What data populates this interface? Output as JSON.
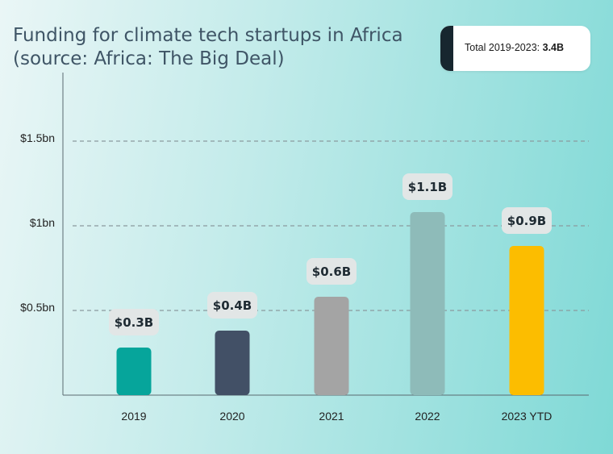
{
  "title_line1": "Funding for climate tech startups in Africa",
  "title_line2": "(source: Africa: The Big Deal)",
  "total": {
    "label": "Total 2019-2023:",
    "value": "3.4B"
  },
  "chart_data": {
    "type": "bar",
    "categories": [
      "2019",
      "2020",
      "2021",
      "2022",
      "2023 YTD"
    ],
    "values": [
      0.3,
      0.4,
      0.6,
      1.1,
      0.9
    ],
    "data_labels": [
      "$0.3B",
      "$0.4B",
      "$0.6B",
      "$1.1B",
      "$0.9B"
    ],
    "colors": [
      "#06a59b",
      "#425066",
      "#a4a4a4",
      "#8ebbb9",
      "#fcbd00"
    ],
    "ytick_values": [
      0.5,
      1,
      1.5
    ],
    "ytick_labels": [
      "$0.5bn",
      "$1bn",
      "$1.5bn"
    ],
    "ylim": [
      0,
      1.65
    ],
    "grid": "dashed horizontal",
    "legend": "none"
  }
}
